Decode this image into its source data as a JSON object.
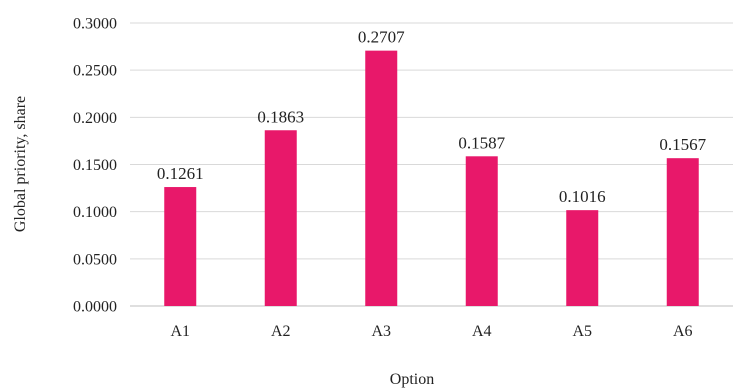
{
  "chart_data": {
    "type": "bar",
    "title": "",
    "xlabel": "Option",
    "ylabel": "Global priority, share",
    "categories": [
      "A1",
      "A2",
      "A3",
      "A4",
      "A5",
      "A6"
    ],
    "values": [
      0.1261,
      0.1863,
      0.2707,
      0.1587,
      0.1016,
      0.1567
    ],
    "value_labels": [
      "0.1261",
      "0.1863",
      "0.2707",
      "0.1587",
      "0.1016",
      "0.1567"
    ],
    "ylim": [
      0,
      0.3
    ],
    "yticks": [
      0,
      0.05,
      0.1,
      0.15,
      0.2,
      0.25,
      0.3
    ],
    "ytick_labels": [
      "0.0000",
      "0.0500",
      "0.1000",
      "0.1500",
      "0.2000",
      "0.2500",
      "0.3000"
    ],
    "grid": true,
    "legend": "none",
    "bar_color": "#e8186a"
  }
}
